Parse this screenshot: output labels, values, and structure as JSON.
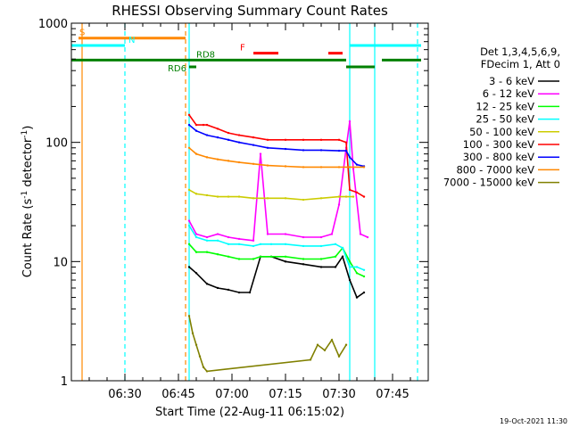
{
  "chart_data": {
    "type": "line",
    "title": "RHESSI Observing Summary Count Rates",
    "xlabel": "Start Time (22-Aug-11 06:15:02)",
    "ylabel_main": "Count Rate (s",
    "ylabel_sup1": "-1",
    "ylabel_mid": " detector",
    "ylabel_sup2": "-1",
    "ylabel_end": ")",
    "y_scale": "log",
    "ylim": [
      1,
      1000
    ],
    "x_range_minutes": [
      "06:15",
      "07:55"
    ],
    "x_ticks": [
      {
        "t": "06:30",
        "label": "06:30"
      },
      {
        "t": "06:45",
        "label": "06:45"
      },
      {
        "t": "07:00",
        "label": "07:00"
      },
      {
        "t": "07:15",
        "label": "07:15"
      },
      {
        "t": "07:30",
        "label": "07:30"
      },
      {
        "t": "07:45",
        "label": "07:45"
      }
    ],
    "y_ticks": [
      {
        "v": 1,
        "label": "1"
      },
      {
        "v": 10,
        "label": "10"
      },
      {
        "v": 100,
        "label": "100"
      },
      {
        "v": 1000,
        "label": "1000"
      }
    ],
    "legend_header": [
      "Det 1,3,4,5,6,9,",
      "FDecim 1, Att 0"
    ],
    "legend_placement": "right",
    "series": [
      {
        "name": "3 - 6 keV",
        "color": "#000000",
        "t": [
          "06:48",
          "06:50",
          "06:53",
          "06:56",
          "06:59",
          "07:02",
          "07:05",
          "07:08",
          "07:11",
          "07:15",
          "07:20",
          "07:25",
          "07:29",
          "07:31",
          "07:33",
          "07:35",
          "07:37"
        ],
        "values": [
          9,
          8,
          6.5,
          6,
          5.8,
          5.5,
          5.5,
          11,
          11,
          10,
          9.5,
          9,
          9,
          11,
          7,
          5,
          5.5
        ]
      },
      {
        "name": "6 - 12 keV",
        "color": "#ff00ff",
        "t": [
          "06:48",
          "06:50",
          "06:53",
          "06:56",
          "06:59",
          "07:02",
          "07:06",
          "07:08",
          "07:10",
          "07:15",
          "07:20",
          "07:25",
          "07:28",
          "07:30",
          "07:32",
          "07:33",
          "07:34",
          "07:36",
          "07:38"
        ],
        "values": [
          22,
          17,
          16,
          17,
          16,
          15.5,
          15,
          80,
          17,
          17,
          16,
          16,
          17,
          30,
          90,
          150,
          60,
          17,
          16
        ]
      },
      {
        "name": "12 - 25 keV",
        "color": "#00ff00",
        "t": [
          "06:48",
          "06:50",
          "06:53",
          "06:56",
          "06:59",
          "07:02",
          "07:06",
          "07:08",
          "07:11",
          "07:15",
          "07:20",
          "07:25",
          "07:29",
          "07:31",
          "07:33",
          "07:35",
          "07:37"
        ],
        "values": [
          14,
          12,
          12,
          11.5,
          11,
          10.5,
          10.5,
          11,
          11,
          11,
          10.5,
          10.5,
          11,
          13,
          10,
          8,
          7.5
        ]
      },
      {
        "name": "25 - 50 keV",
        "color": "#00ffff",
        "t": [
          "06:48",
          "06:50",
          "06:53",
          "06:56",
          "06:59",
          "07:02",
          "07:06",
          "07:08",
          "07:11",
          "07:15",
          "07:20",
          "07:25",
          "07:29",
          "07:31",
          "07:33",
          "07:35",
          "07:37"
        ],
        "values": [
          20,
          16,
          15,
          15,
          14,
          14,
          13.5,
          14,
          14,
          14,
          13.5,
          13.5,
          14,
          13,
          9,
          9,
          8.5
        ]
      },
      {
        "name": "50 - 100 keV",
        "color": "#cccc00",
        "t": [
          "06:48",
          "06:50",
          "06:53",
          "06:56",
          "06:59",
          "07:02",
          "07:06",
          "07:10",
          "07:15",
          "07:20",
          "07:25",
          "07:30",
          "07:32",
          "07:34"
        ],
        "values": [
          40,
          37,
          36,
          35,
          35,
          35,
          34,
          34,
          34,
          33,
          34,
          35,
          35,
          35
        ]
      },
      {
        "name": "100 - 300 keV",
        "color": "#ff0000",
        "t": [
          "06:48",
          "06:50",
          "06:52",
          "06:53",
          "06:56",
          "06:59",
          "07:02",
          "07:06",
          "07:10",
          "07:15",
          "07:20",
          "07:25",
          "07:30",
          "07:32",
          "07:33",
          "07:35",
          "07:37"
        ],
        "values": [
          170,
          140,
          140,
          140,
          130,
          120,
          115,
          110,
          105,
          105,
          105,
          105,
          105,
          100,
          40,
          38,
          35
        ]
      },
      {
        "name": "300 - 800 keV",
        "color": "#0000ff",
        "t": [
          "06:48",
          "06:50",
          "06:53",
          "06:56",
          "06:59",
          "07:02",
          "07:06",
          "07:10",
          "07:15",
          "07:20",
          "07:25",
          "07:30",
          "07:32",
          "07:33",
          "07:35",
          "07:37"
        ],
        "values": [
          140,
          125,
          115,
          110,
          105,
          100,
          95,
          90,
          88,
          86,
          86,
          85,
          85,
          75,
          65,
          63
        ]
      },
      {
        "name": "800 - 7000 keV",
        "color": "#ff8800",
        "t": [
          "06:48",
          "06:50",
          "06:53",
          "06:56",
          "06:59",
          "07:02",
          "07:06",
          "07:10",
          "07:15",
          "07:20",
          "07:25",
          "07:30",
          "07:33",
          "07:37"
        ],
        "values": [
          90,
          80,
          75,
          72,
          70,
          68,
          66,
          64,
          63,
          62,
          62,
          62,
          62,
          62
        ]
      },
      {
        "name": "7000 - 15000 keV",
        "color": "#808000",
        "t": [
          "06:48",
          "06:49",
          "06:50",
          "06:51",
          "06:52",
          "06:53",
          "07:22",
          "07:24",
          "07:26",
          "07:28",
          "07:30",
          "07:32"
        ],
        "values": [
          3.5,
          2.5,
          2,
          1.6,
          1.3,
          1.2,
          1.5,
          2,
          1.8,
          2.2,
          1.6,
          2
        ]
      }
    ],
    "flag_bars": [
      {
        "label": "S",
        "color": "#ff8800",
        "y": 750,
        "segments": [
          [
            "06:17",
            "06:47"
          ]
        ]
      },
      {
        "label": "N",
        "color": "#00ffff",
        "y": 650,
        "segments": [
          [
            "06:15",
            "06:30"
          ],
          [
            "07:33",
            "07:53"
          ]
        ]
      },
      {
        "label": "F",
        "color": "#ff0000",
        "y": 560,
        "segments": [
          [
            "07:06",
            "07:13"
          ],
          [
            "07:27",
            "07:31"
          ]
        ]
      },
      {
        "label": "RD8",
        "color": "#008000",
        "y": 490,
        "segments": [
          [
            "06:15",
            "07:32"
          ],
          [
            "07:42",
            "07:53"
          ]
        ]
      },
      {
        "label": "RD6",
        "color": "#008000",
        "y": 430,
        "segments": [
          [
            "06:48",
            "06:50"
          ],
          [
            "07:32",
            "07:40"
          ]
        ]
      }
    ],
    "vlines": [
      {
        "t": "06:18",
        "color": "#ff8800",
        "style": "solid"
      },
      {
        "t": "06:30",
        "color": "#00ffff",
        "style": "dashed"
      },
      {
        "t": "06:47",
        "color": "#ff8800",
        "style": "dashed"
      },
      {
        "t": "06:48",
        "color": "#00ffff",
        "style": "solid"
      },
      {
        "t": "07:33",
        "color": "#00ffff",
        "style": "solid"
      },
      {
        "t": "07:40",
        "color": "#00ffff",
        "style": "solid"
      },
      {
        "t": "07:52",
        "color": "#00ffff",
        "style": "dashed"
      }
    ],
    "timestamp": "19-Oct-2021 11:30"
  }
}
